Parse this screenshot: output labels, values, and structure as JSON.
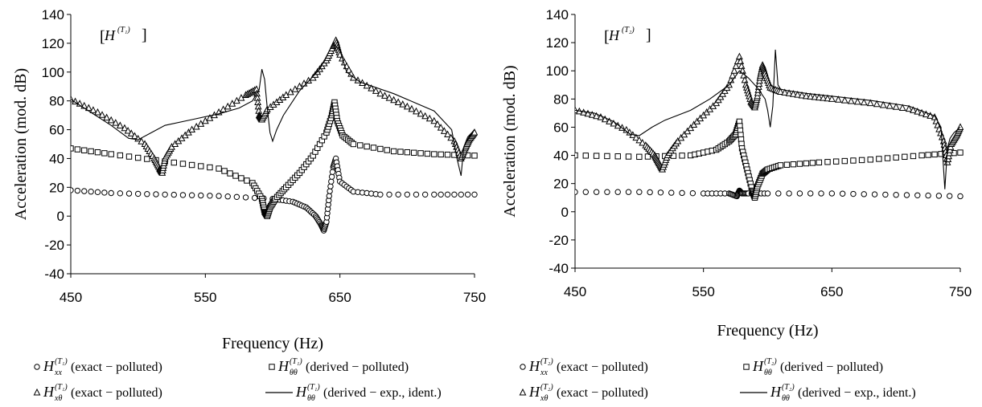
{
  "chart_data": [
    {
      "type": "line",
      "panel_label_main": "H",
      "panel_label_sup": "(T₁)",
      "xlabel": "Frequency (Hz)",
      "ylabel": "Acceleration (mod. dB)",
      "xlim": [
        450,
        750
      ],
      "ylim": [
        -40,
        140
      ],
      "xticks": [
        450,
        550,
        650,
        750
      ],
      "yticks": [
        -40,
        -20,
        0,
        20,
        40,
        60,
        80,
        100,
        120,
        140
      ],
      "grid": false,
      "legend_position": "bottom",
      "legend": [
        {
          "marker": "circle",
          "sym": "H",
          "sub": "xx",
          "sup": "(T₁)",
          "text": "(exact − polluted)"
        },
        {
          "marker": "square",
          "sym": "H",
          "sub": "θθ",
          "sup": "(T₁)",
          "text": "(derived − polluted)"
        },
        {
          "marker": "triangle",
          "sym": "H",
          "sub": "xθ",
          "sup": "(T₁)",
          "text": "(exact − polluted)"
        },
        {
          "marker": "line",
          "sym": "H",
          "sub": "θθ",
          "sup": "(T₁)",
          "text": "(derived − exp., ident.)"
        }
      ],
      "series": [
        {
          "marker": "circle",
          "x": [
            450,
            480,
            520,
            560,
            600,
            615,
            625,
            632,
            636,
            638,
            640,
            642,
            645,
            647,
            650,
            660,
            680,
            720,
            750
          ],
          "y": [
            18,
            16,
            15,
            14,
            12,
            10,
            6,
            0,
            -6,
            -10,
            -4,
            14,
            34,
            40,
            24,
            17,
            15,
            15,
            15
          ]
        },
        {
          "marker": "square",
          "x": [
            450,
            480,
            520,
            560,
            585,
            592,
            594,
            596,
            598,
            602,
            610,
            620,
            630,
            640,
            644,
            646,
            648,
            652,
            660,
            690,
            720,
            750
          ],
          "y": [
            47,
            43,
            38,
            33,
            23,
            12,
            3,
            0,
            6,
            12,
            20,
            30,
            42,
            58,
            70,
            79,
            66,
            56,
            50,
            45,
            43,
            42
          ]
        },
        {
          "marker": "triangle",
          "x": [
            450,
            470,
            490,
            505,
            512,
            516,
            518,
            520,
            525,
            540,
            560,
            580,
            588,
            590,
            592,
            596,
            610,
            630,
            640,
            645,
            647,
            650,
            660,
            680,
            700,
            720,
            735,
            740,
            743,
            746,
            750
          ],
          "y": [
            81,
            72,
            61,
            50,
            40,
            33,
            30,
            40,
            48,
            60,
            72,
            84,
            88,
            70,
            67,
            74,
            84,
            96,
            108,
            118,
            122,
            112,
            96,
            85,
            76,
            66,
            52,
            40,
            47,
            53,
            58
          ]
        },
        {
          "marker": "line",
          "x": [
            450,
            465,
            480,
            493,
            500,
            510,
            520,
            540,
            560,
            575,
            585,
            590,
            592,
            594,
            596,
            598,
            600,
            603,
            608,
            620,
            635,
            645,
            650,
            655,
            665,
            690,
            720,
            733,
            737,
            740,
            742,
            745,
            750
          ],
          "y": [
            81,
            72,
            63,
            54,
            53,
            58,
            63,
            67,
            71,
            75,
            80,
            88,
            102,
            95,
            75,
            58,
            52,
            60,
            70,
            87,
            102,
            120,
            115,
            100,
            93,
            85,
            73,
            60,
            40,
            28,
            48,
            55,
            60
          ]
        }
      ]
    },
    {
      "type": "line",
      "panel_label_main": "H",
      "panel_label_sup": "(T₂)",
      "xlabel": "Frequency (Hz)",
      "ylabel": "Acceleration (mod. dB)",
      "xlim": [
        450,
        750
      ],
      "ylim": [
        -40,
        140
      ],
      "xticks": [
        450,
        550,
        650,
        750
      ],
      "yticks": [
        -40,
        -20,
        0,
        20,
        40,
        60,
        80,
        100,
        120,
        140
      ],
      "grid": false,
      "legend_position": "bottom",
      "legend": [
        {
          "marker": "circle",
          "sym": "H",
          "sub": "xx",
          "sup": "(T₂)",
          "text": "(exact − polluted)"
        },
        {
          "marker": "square",
          "sym": "H",
          "sub": "θθ",
          "sup": "(T₂)",
          "text": "(derived − polluted)"
        },
        {
          "marker": "triangle",
          "sym": "H",
          "sub": "xθ",
          "sup": "(T₂)",
          "text": "(exact − polluted)"
        },
        {
          "marker": "line",
          "sym": "H",
          "sub": "θθ",
          "sup": "(T₂)",
          "text": "(derived − exp., ident.)"
        }
      ],
      "series": [
        {
          "marker": "circle",
          "x": [
            450,
            500,
            550,
            570,
            576,
            578,
            580,
            585,
            600,
            650,
            700,
            750
          ],
          "y": [
            14,
            14,
            13,
            13,
            11,
            15,
            13,
            13,
            13,
            13,
            12,
            11
          ]
        },
        {
          "marker": "square",
          "x": [
            450,
            500,
            540,
            560,
            570,
            575,
            578,
            580,
            584,
            588,
            590,
            592,
            596,
            600,
            610,
            640,
            680,
            720,
            750
          ],
          "y": [
            40,
            39,
            40,
            44,
            50,
            55,
            64,
            45,
            30,
            15,
            10,
            18,
            27,
            30,
            33,
            35,
            37,
            40,
            42
          ]
        },
        {
          "marker": "triangle",
          "x": [
            450,
            470,
            490,
            505,
            512,
            515,
            518,
            522,
            530,
            545,
            560,
            570,
            578,
            583,
            587,
            590,
            592,
            594,
            596,
            598,
            602,
            610,
            630,
            650,
            680,
            710,
            730,
            737,
            740,
            743,
            747,
            750
          ],
          "y": [
            72,
            67,
            58,
            47,
            40,
            35,
            30,
            40,
            50,
            64,
            77,
            90,
            110,
            90,
            78,
            74,
            82,
            95,
            104,
            98,
            88,
            85,
            82,
            80,
            77,
            73,
            67,
            50,
            35,
            48,
            54,
            60
          ]
        },
        {
          "marker": "line",
          "x": [
            450,
            465,
            480,
            493,
            500,
            510,
            520,
            540,
            555,
            570,
            578,
            585,
            592,
            598,
            600,
            602,
            604,
            606,
            608,
            610,
            615,
            630,
            650,
            680,
            710,
            730,
            735,
            738,
            740,
            742,
            745,
            750
          ],
          "y": [
            72,
            70,
            64,
            55,
            54,
            60,
            65,
            72,
            80,
            90,
            100,
            95,
            88,
            80,
            72,
            60,
            75,
            115,
            90,
            87,
            86,
            84,
            82,
            79,
            75,
            68,
            60,
            16,
            45,
            52,
            56,
            60
          ]
        }
      ]
    }
  ]
}
